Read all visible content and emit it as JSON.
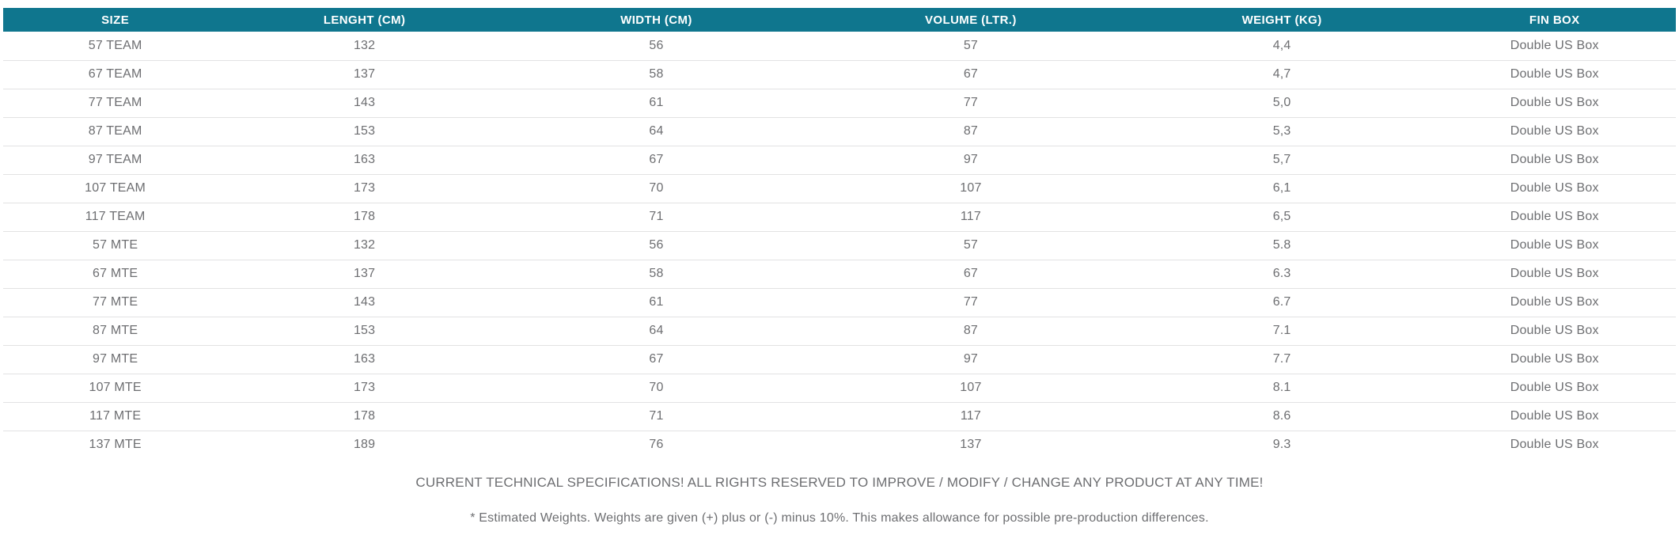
{
  "colors": {
    "header_bg": "#0F768E",
    "header_text": "#FFFFFF",
    "cell_text": "#6D6E71",
    "divider": "#E2E2E3",
    "background": "#FFFFFF"
  },
  "table": {
    "columns": [
      {
        "key": "size",
        "label": "SIZE"
      },
      {
        "key": "length",
        "label": "LENGHT (CM)"
      },
      {
        "key": "width",
        "label": "WIDTH (CM)"
      },
      {
        "key": "volume",
        "label": "VOLUME (LTR.)"
      },
      {
        "key": "weight",
        "label": "WEIGHT (KG)"
      },
      {
        "key": "finbox",
        "label": "FIN BOX"
      }
    ],
    "rows": [
      [
        "57 TEAM",
        "132",
        "56",
        "57",
        "4,4",
        "Double US Box"
      ],
      [
        "67 TEAM",
        "137",
        "58",
        "67",
        "4,7",
        "Double US Box"
      ],
      [
        "77 TEAM",
        "143",
        "61",
        "77",
        "5,0",
        "Double US Box"
      ],
      [
        "87 TEAM",
        "153",
        "64",
        "87",
        "5,3",
        "Double US Box"
      ],
      [
        "97 TEAM",
        "163",
        "67",
        "97",
        "5,7",
        "Double US Box"
      ],
      [
        "107 TEAM",
        "173",
        "70",
        "107",
        "6,1",
        "Double US Box"
      ],
      [
        "117 TEAM",
        "178",
        "71",
        "117",
        "6,5",
        "Double US Box"
      ],
      [
        "57 MTE",
        "132",
        "56",
        "57",
        "5.8",
        "Double US Box"
      ],
      [
        "67 MTE",
        "137",
        "58",
        "67",
        "6.3",
        "Double US Box"
      ],
      [
        "77 MTE",
        "143",
        "61",
        "77",
        "6.7",
        "Double US Box"
      ],
      [
        "87 MTE",
        "153",
        "64",
        "87",
        "7.1",
        "Double US Box"
      ],
      [
        "97 MTE",
        "163",
        "67",
        "97",
        "7.7",
        "Double US Box"
      ],
      [
        "107 MTE",
        "173",
        "70",
        "107",
        "8.1",
        "Double US Box"
      ],
      [
        "117 MTE",
        "178",
        "71",
        "117",
        "8.6",
        "Double US Box"
      ],
      [
        "137 MTE",
        "189",
        "76",
        "137",
        "9.3",
        "Double US Box"
      ]
    ]
  },
  "footer": {
    "line1": "CURRENT TECHNICAL SPECIFICATIONS! ALL RIGHTS RESERVED TO IMPROVE / MODIFY / CHANGE ANY PRODUCT AT ANY TIME!",
    "line2": "* Estimated Weights. Weights are given (+) plus or (-) minus 10%. This makes allowance for possible pre-production differences."
  }
}
